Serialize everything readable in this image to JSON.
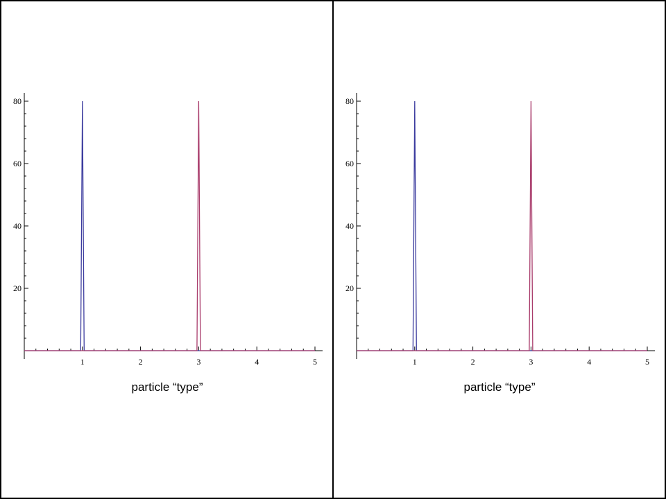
{
  "chart_data": [
    {
      "type": "line",
      "xlabel": "particle “type”",
      "ylabel": "",
      "xlim": [
        0,
        5
      ],
      "ylim": [
        0,
        82
      ],
      "x_ticks": [
        1,
        2,
        3,
        4,
        5
      ],
      "y_ticks": [
        20,
        40,
        60,
        80
      ],
      "grid": false,
      "series": [
        {
          "color": "#3b3b9e",
          "x": [
            0,
            0.97,
            1.0,
            1.03,
            5
          ],
          "values": [
            0,
            0,
            80,
            0,
            0
          ]
        },
        {
          "color": "#a83a6a",
          "x": [
            0,
            2.97,
            3.0,
            3.03,
            5
          ],
          "values": [
            0,
            0,
            80,
            0,
            0
          ]
        }
      ]
    },
    {
      "type": "line",
      "xlabel": "particle “type”",
      "ylabel": "",
      "xlim": [
        0,
        5
      ],
      "ylim": [
        0,
        82
      ],
      "x_ticks": [
        1,
        2,
        3,
        4,
        5
      ],
      "y_ticks": [
        20,
        40,
        60,
        80
      ],
      "grid": false,
      "series": [
        {
          "color": "#3b3b9e",
          "x": [
            0,
            0.97,
            1.0,
            1.03,
            5
          ],
          "values": [
            0,
            0,
            80,
            0,
            0
          ]
        },
        {
          "color": "#a83a6a",
          "x": [
            0,
            2.97,
            3.0,
            3.03,
            5
          ],
          "values": [
            0,
            0,
            80,
            0,
            0
          ]
        }
      ]
    }
  ]
}
